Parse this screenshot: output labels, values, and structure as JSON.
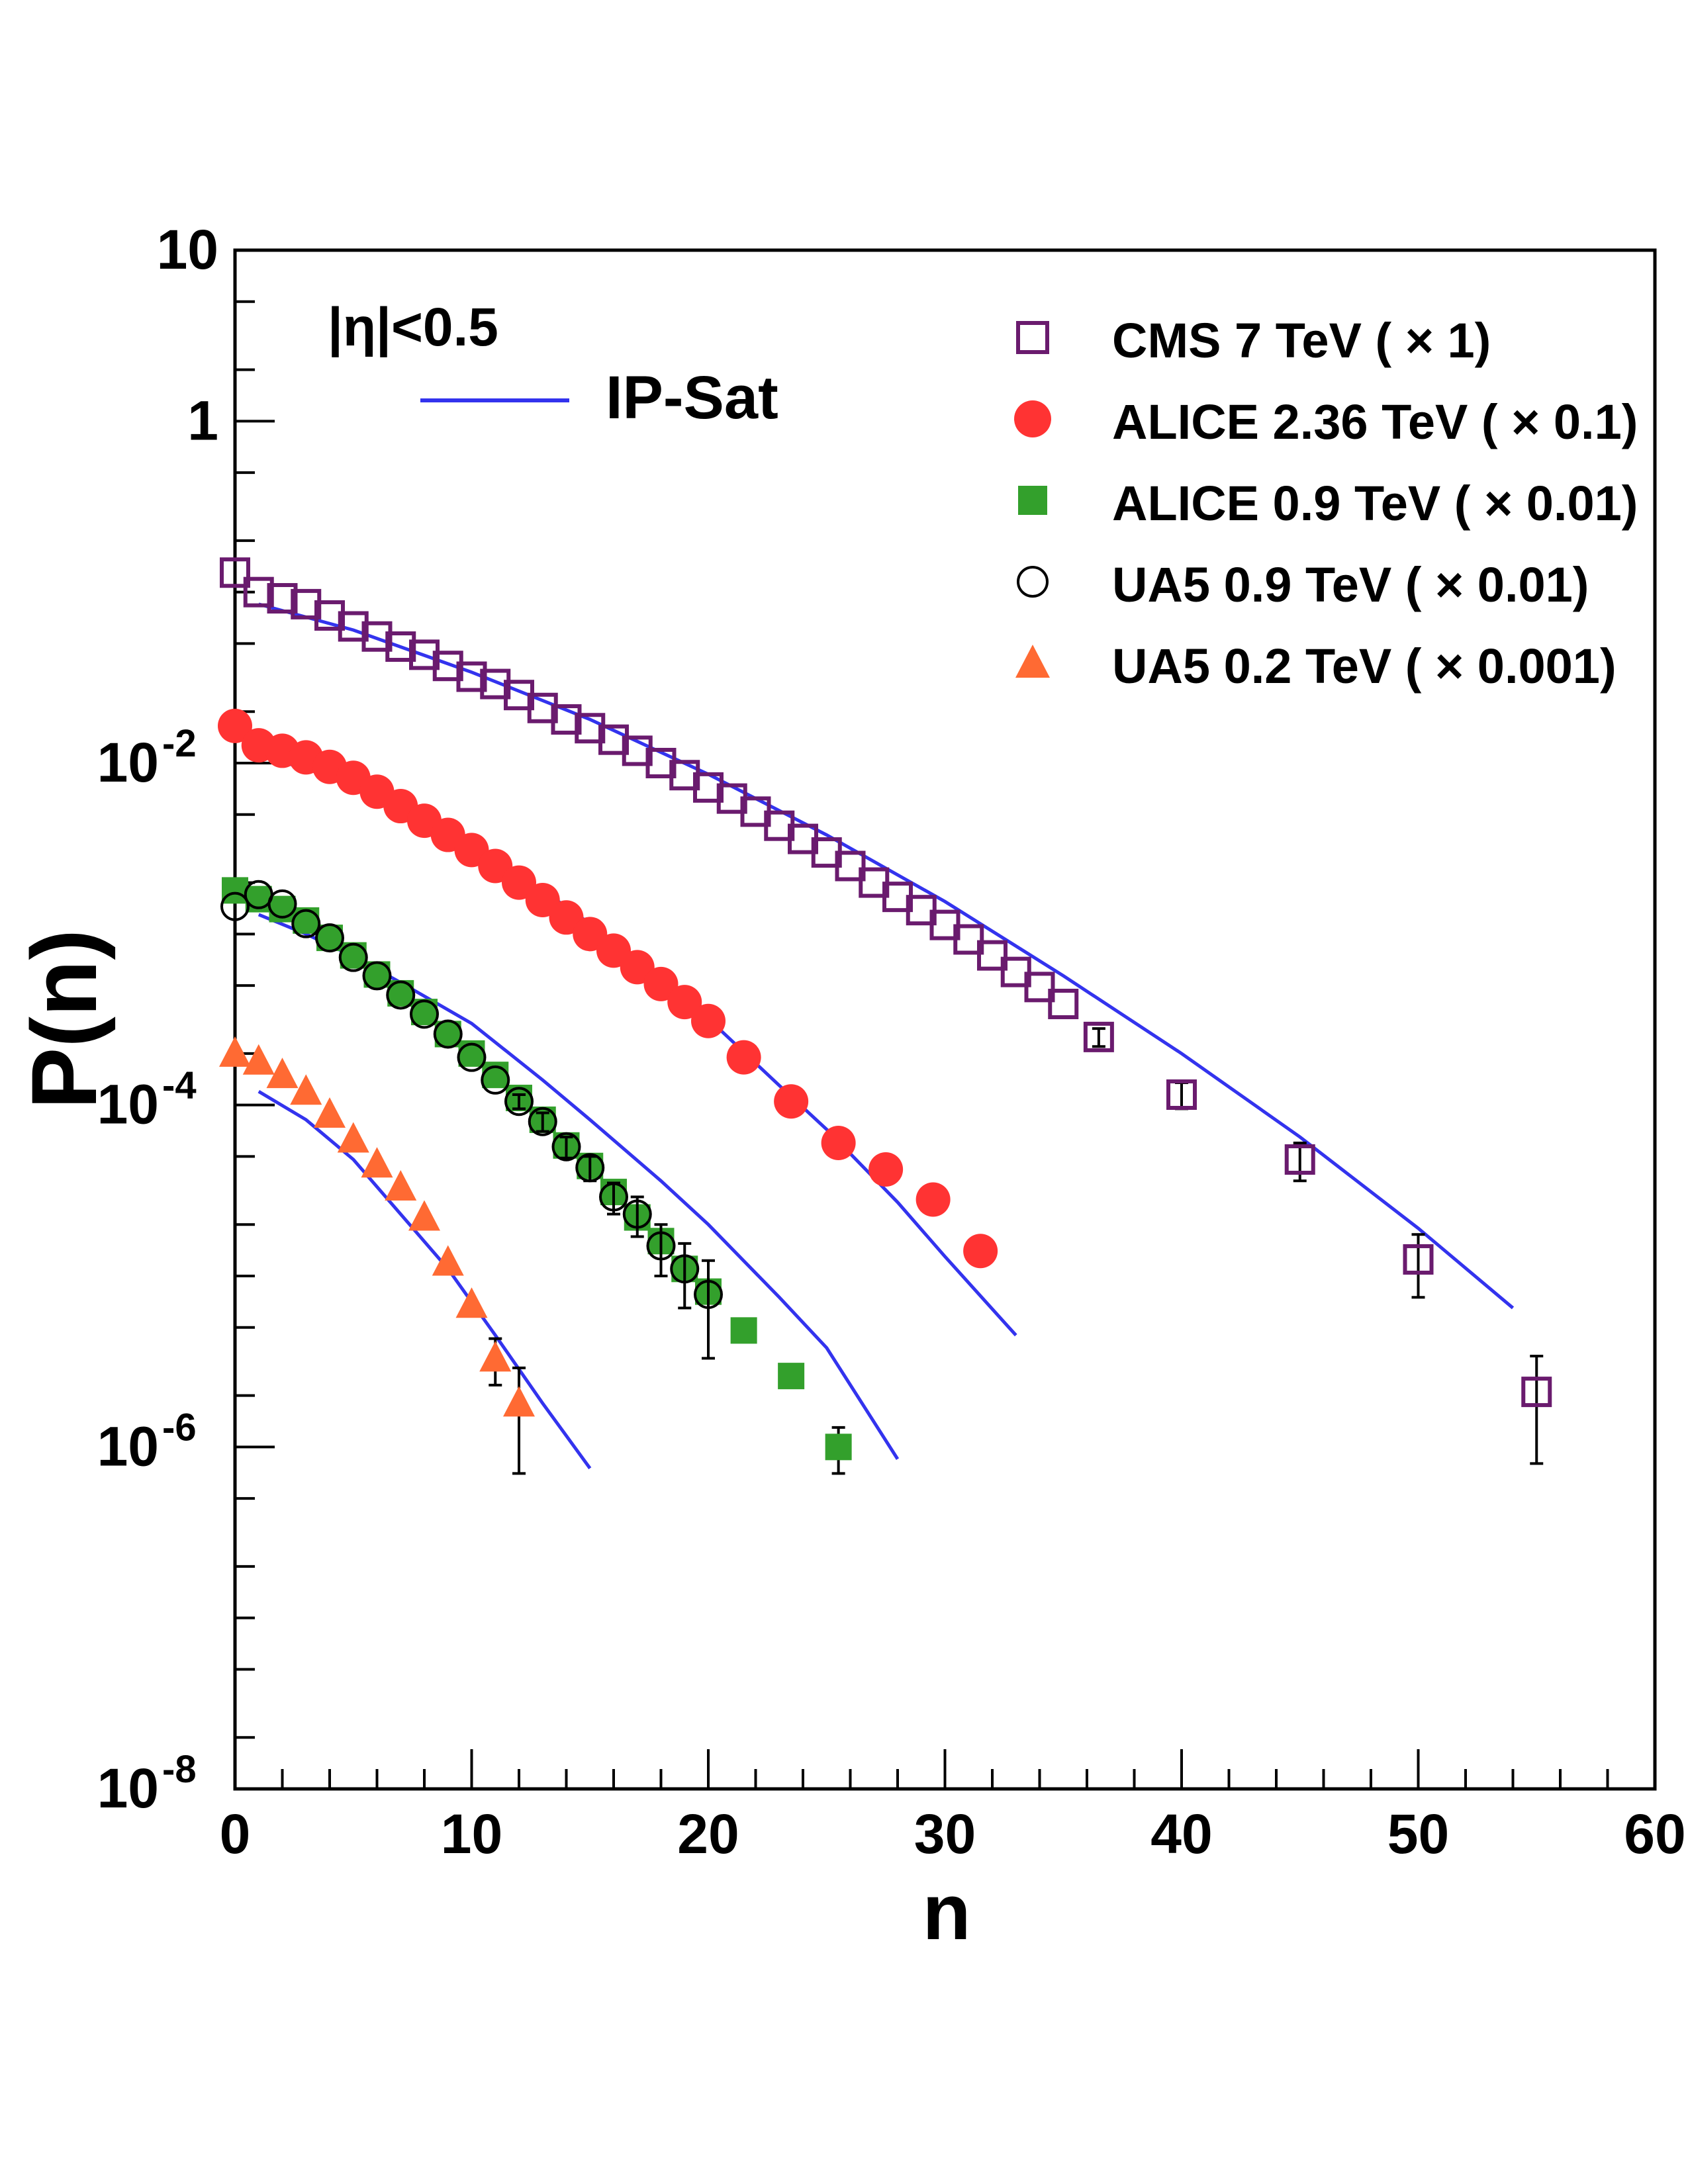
{
  "chart_data": {
    "type": "scatter",
    "title": "",
    "xlabel": "n",
    "ylabel": "P(n)",
    "xlim": [
      0,
      60
    ],
    "ylim": [
      1e-08,
      10
    ],
    "yscale": "log",
    "x_ticks": [
      "0",
      "10",
      "20",
      "30",
      "40",
      "50",
      "60"
    ],
    "y_ticks": [
      {
        "base": "10",
        "exp": ""
      },
      {
        "base": "1",
        "exp": ""
      },
      {
        "base": "10",
        "exp": "-2"
      },
      {
        "base": "10",
        "exp": "-4"
      },
      {
        "base": "10",
        "exp": "-6"
      },
      {
        "base": "10",
        "exp": "-8"
      }
    ],
    "annotation": "|η|<0.5",
    "legend_placement": "top-right",
    "series": [
      {
        "name": "CMS 7 TeV ( × 1)",
        "marker": "open-square",
        "color": "#6a1b6e",
        "x": [
          0,
          1,
          2,
          3,
          4,
          5,
          6,
          7,
          8,
          9,
          10,
          11,
          12,
          13,
          14,
          15,
          16,
          17,
          18,
          19,
          20,
          21,
          22,
          23,
          24,
          25,
          26,
          27,
          28,
          29,
          30,
          31,
          32,
          33,
          34,
          35,
          36.5,
          40,
          45,
          50,
          55
        ],
        "y": [
          0.13,
          0.1,
          0.092,
          0.085,
          0.073,
          0.063,
          0.055,
          0.048,
          0.043,
          0.037,
          0.032,
          0.029,
          0.025,
          0.021,
          0.018,
          0.016,
          0.0137,
          0.0118,
          0.01,
          0.0085,
          0.0072,
          0.0062,
          0.0052,
          0.0043,
          0.0036,
          0.003,
          0.0025,
          0.002,
          0.00165,
          0.00138,
          0.00113,
          0.00093,
          0.00075,
          0.0006,
          0.00049,
          0.00039,
          0.00025,
          0.000115,
          4.8e-05,
          1.25e-05,
          2.1e-06
        ],
        "yerr": [
          0,
          0,
          0,
          0,
          0,
          0,
          0,
          0,
          0,
          0,
          0,
          0,
          0,
          0,
          0,
          0,
          0,
          0,
          0,
          0,
          0,
          0,
          0,
          0,
          0,
          0,
          0,
          0,
          0,
          0,
          0,
          0,
          0,
          0,
          0,
          0,
          3e-05,
          2e-05,
          1.2e-05,
          5e-06,
          1.3e-06
        ]
      },
      {
        "name": "ALICE 2.36 TeV ( × 0.1)",
        "marker": "filled-circle",
        "color": "#ff3333",
        "x": [
          0,
          1,
          2,
          3,
          4,
          5,
          6,
          7,
          8,
          9,
          10,
          11,
          12,
          13,
          14,
          15,
          16,
          17,
          18,
          19,
          20,
          21.5,
          23.5,
          25.5,
          27.5,
          29.5,
          31.5
        ],
        "y": [
          0.0165,
          0.0127,
          0.0118,
          0.0108,
          0.0095,
          0.0082,
          0.0068,
          0.0056,
          0.0046,
          0.0038,
          0.0031,
          0.0025,
          0.002,
          0.00158,
          0.00125,
          0.001,
          0.0008,
          0.00064,
          0.00051,
          0.0004,
          0.00031,
          0.00019,
          0.000105,
          6e-05,
          4.2e-05,
          2.8e-05,
          1.4e-05
        ]
      },
      {
        "name": "ALICE 0.9 TeV ( × 0.01)",
        "marker": "filled-square",
        "color": "#33a02c",
        "x": [
          0,
          1,
          2,
          3,
          4,
          5,
          6,
          7,
          8,
          9,
          10,
          11,
          12,
          13,
          14,
          15,
          16,
          17,
          18,
          19,
          20,
          21.5,
          23.5,
          25.5
        ],
        "y": [
          0.0018,
          0.0016,
          0.0014,
          0.0012,
          0.00095,
          0.00075,
          0.00058,
          0.00045,
          0.00035,
          0.00026,
          0.0002,
          0.00015,
          0.00011,
          8.2e-05,
          5.8e-05,
          4.4e-05,
          3.1e-05,
          2.2e-05,
          1.6e-05,
          1.1e-05,
          8.1e-06,
          4.8e-06,
          2.6e-06,
          1e-06
        ],
        "yerr": [
          0,
          0,
          0,
          0,
          0,
          0,
          0,
          0,
          0,
          0,
          0,
          0,
          0,
          0,
          0,
          0,
          0,
          0,
          0,
          0,
          0,
          0,
          0,
          3e-07
        ]
      },
      {
        "name": "UA5 0.9 TeV ( × 0.01)",
        "marker": "open-circle",
        "color": "#000000",
        "x": [
          0,
          1,
          2,
          3,
          4,
          5,
          6,
          7,
          8,
          9,
          10,
          11,
          12,
          13,
          14,
          15,
          16,
          17,
          18,
          19,
          20
        ],
        "y": [
          0.00145,
          0.0017,
          0.0015,
          0.00115,
          0.00095,
          0.00073,
          0.00057,
          0.00044,
          0.00034,
          0.00026,
          0.00019,
          0.00014,
          0.000105,
          8e-05,
          5.7e-05,
          4.3e-05,
          2.9e-05,
          2.3e-05,
          1.5e-05,
          1.1e-05,
          7.8e-06
        ],
        "yerr": [
          0,
          0,
          0,
          0,
          0,
          0,
          0,
          0,
          0,
          0,
          0,
          0,
          1e-05,
          1e-05,
          8e-06,
          7e-06,
          6e-06,
          6e-06,
          5e-06,
          4.5e-06,
          4.5e-06
        ]
      },
      {
        "name": "UA5 0.2 TeV ( × 0.001)",
        "marker": "filled-triangle",
        "color": "#ff6a33",
        "x": [
          0,
          1,
          2,
          3,
          4,
          5,
          6,
          7,
          8,
          9,
          10,
          11,
          12
        ],
        "y": [
          0.0002,
          0.00018,
          0.00015,
          0.00012,
          8.8e-05,
          6.3e-05,
          4.5e-05,
          3.3e-05,
          2.2e-05,
          1.2e-05,
          6.8e-06,
          3.3e-06,
          1.8e-06
        ],
        "yerr": [
          0,
          0,
          0,
          0,
          0,
          0,
          0,
          0,
          0,
          0,
          0,
          1e-06,
          1.1e-06
        ]
      },
      {
        "name": "IP-Sat",
        "marker": "line",
        "color": "#3333ee",
        "curves": [
          {
            "x": [
              1,
              5,
              10,
              15,
              20,
              25,
              30,
              35,
              40,
              45,
              50,
              54
            ],
            "y": [
              0.085,
              0.06,
              0.034,
              0.018,
              0.0086,
              0.0038,
              0.00155,
              0.00057,
              0.0002,
              6.5e-05,
              1.9e-05,
              6.5e-06
            ]
          },
          {
            "x": [
              1,
              3,
              5,
              8,
              10,
              13,
              15,
              18,
              20,
              23,
              25,
              28,
              30,
              33
            ],
            "y": [
              0.011,
              0.0093,
              0.0073,
              0.0046,
              0.0032,
              0.0018,
              0.00115,
              0.00055,
              0.00032,
              0.00013,
              7.2e-05,
              2.7e-05,
              1.3e-05,
              4.5e-06
            ]
          },
          {
            "x": [
              1,
              3,
              5,
              7,
              10,
              13,
              15,
              18,
              20,
              23,
              25,
              28
            ],
            "y": [
              0.0013,
              0.001,
              0.00074,
              0.00052,
              0.0003,
              0.00014,
              8.2e-05,
              3.6e-05,
              2e-05,
              7.5e-06,
              3.8e-06,
              8.5e-07
            ]
          },
          {
            "x": [
              1,
              3,
              5,
              7,
              9,
              11,
              13,
              15
            ],
            "y": [
              0.00012,
              8.2e-05,
              4.8e-05,
              2.3e-05,
              1.1e-05,
              4.5e-06,
              1.8e-06,
              7.5e-07
            ]
          }
        ]
      }
    ]
  }
}
